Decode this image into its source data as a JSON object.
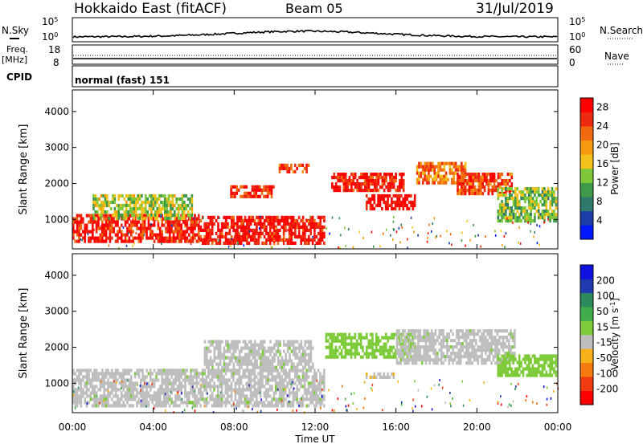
{
  "header": {
    "station": "Hokkaido East (fitACF)",
    "beam": "Beam 05",
    "date": "31/Jul/2019"
  },
  "status_panels": {
    "nsky_label": "N.Sky",
    "nsearch_label": "N.Search",
    "noise_ticks_left": [
      "10^5",
      "10^0"
    ],
    "noise_ticks_right": [
      "10^5",
      "10^0"
    ],
    "freq_label": "Freq.",
    "freq_unit": "[MHz]",
    "freq_ticks": [
      "18",
      "8"
    ],
    "nave_label": "Nave",
    "nave_ticks": [
      "60",
      "0"
    ],
    "cpid_label": "CPID",
    "cpid_value": "normal (fast) 151"
  },
  "colors": {
    "power_scale": [
      "#0018ff",
      "#1a3da8",
      "#2f7a6b",
      "#3f9a4a",
      "#7ec83a",
      "#f2c21a",
      "#f79a10",
      "#f26a10",
      "#ee2a10",
      "#ff0000"
    ],
    "velocity_scale": [
      "#ff0000",
      "#f03c10",
      "#f77a10",
      "#f7b21a",
      "#bebebe",
      "#7ecb3a",
      "#3fae4a",
      "#2c8a5c",
      "#203ab0",
      "#1010e0"
    ],
    "ground_scatter": "#bebebe"
  },
  "chart_data": [
    {
      "type": "heatmap",
      "panel": "power",
      "xlabel": "",
      "ylabel": "Slant Range [km]",
      "x_ticks": [
        "00:00",
        "04:00",
        "08:00",
        "12:00",
        "16:00",
        "20:00",
        "00:00"
      ],
      "x_range_hours": [
        0,
        24
      ],
      "y_ticks": [
        "1000",
        "2000",
        "3000",
        "4000"
      ],
      "y_range_km": [
        180,
        4600
      ],
      "colorbar": {
        "label": "Power [dB]",
        "ticks": [
          "4",
          "8",
          "12",
          "16",
          "20",
          "24",
          "28"
        ],
        "range": [
          0,
          30
        ]
      },
      "regions": [
        {
          "t0": 0.0,
          "t1": 6.3,
          "r0": 260,
          "r1": 1150,
          "value": 27
        },
        {
          "t0": 1.0,
          "t1": 6.0,
          "r0": 900,
          "r1": 1700,
          "value": 14
        },
        {
          "t0": 6.3,
          "t1": 12.5,
          "r0": 230,
          "r1": 1100,
          "value": 28
        },
        {
          "t0": 7.8,
          "t1": 10.0,
          "r0": 1550,
          "r1": 1950,
          "value": 26
        },
        {
          "t0": 10.2,
          "t1": 11.8,
          "r0": 2250,
          "r1": 2550,
          "value": 25
        },
        {
          "t0": 12.8,
          "t1": 16.5,
          "r0": 1700,
          "r1": 2300,
          "value": 27
        },
        {
          "t0": 14.5,
          "t1": 17.0,
          "r0": 1200,
          "r1": 1700,
          "value": 29
        },
        {
          "t0": 17.0,
          "t1": 19.5,
          "r0": 1900,
          "r1": 2600,
          "value": 22
        },
        {
          "t0": 19.0,
          "t1": 21.8,
          "r0": 1650,
          "r1": 2300,
          "value": 25
        },
        {
          "t0": 21.0,
          "t1": 24.0,
          "r0": 900,
          "r1": 1900,
          "value": 13
        }
      ]
    },
    {
      "type": "heatmap",
      "panel": "velocity",
      "xlabel": "Time UT",
      "ylabel": "Slant Range [km]",
      "x_ticks": [
        "00:00",
        "04:00",
        "08:00",
        "12:00",
        "16:00",
        "20:00",
        "00:00"
      ],
      "x_range_hours": [
        0,
        24
      ],
      "y_ticks": [
        "1000",
        "2000",
        "3000",
        "4000"
      ],
      "y_range_km": [
        180,
        4600
      ],
      "colorbar": {
        "label": "Velocity [m s^-1]",
        "ticks": [
          "200",
          "100",
          "50",
          "15",
          "-15",
          "-50",
          "-100",
          "-200"
        ],
        "range": [
          -250,
          250
        ]
      },
      "regions": [
        {
          "t0": 0.0,
          "t1": 12.5,
          "r0": 300,
          "r1": 1400,
          "value": 0
        },
        {
          "t0": 6.5,
          "t1": 12.0,
          "r0": 1300,
          "r1": 2200,
          "value": 0
        },
        {
          "t0": 12.5,
          "t1": 17.0,
          "r0": 1600,
          "r1": 2400,
          "value": 30
        },
        {
          "t0": 14.5,
          "t1": 16.0,
          "r0": 1050,
          "r1": 1300,
          "value": -40
        },
        {
          "t0": 16.0,
          "t1": 22.0,
          "r0": 1500,
          "r1": 2500,
          "value": 0
        },
        {
          "t0": 21.0,
          "t1": 24.0,
          "r0": 1100,
          "r1": 1800,
          "value": 20
        }
      ]
    }
  ]
}
